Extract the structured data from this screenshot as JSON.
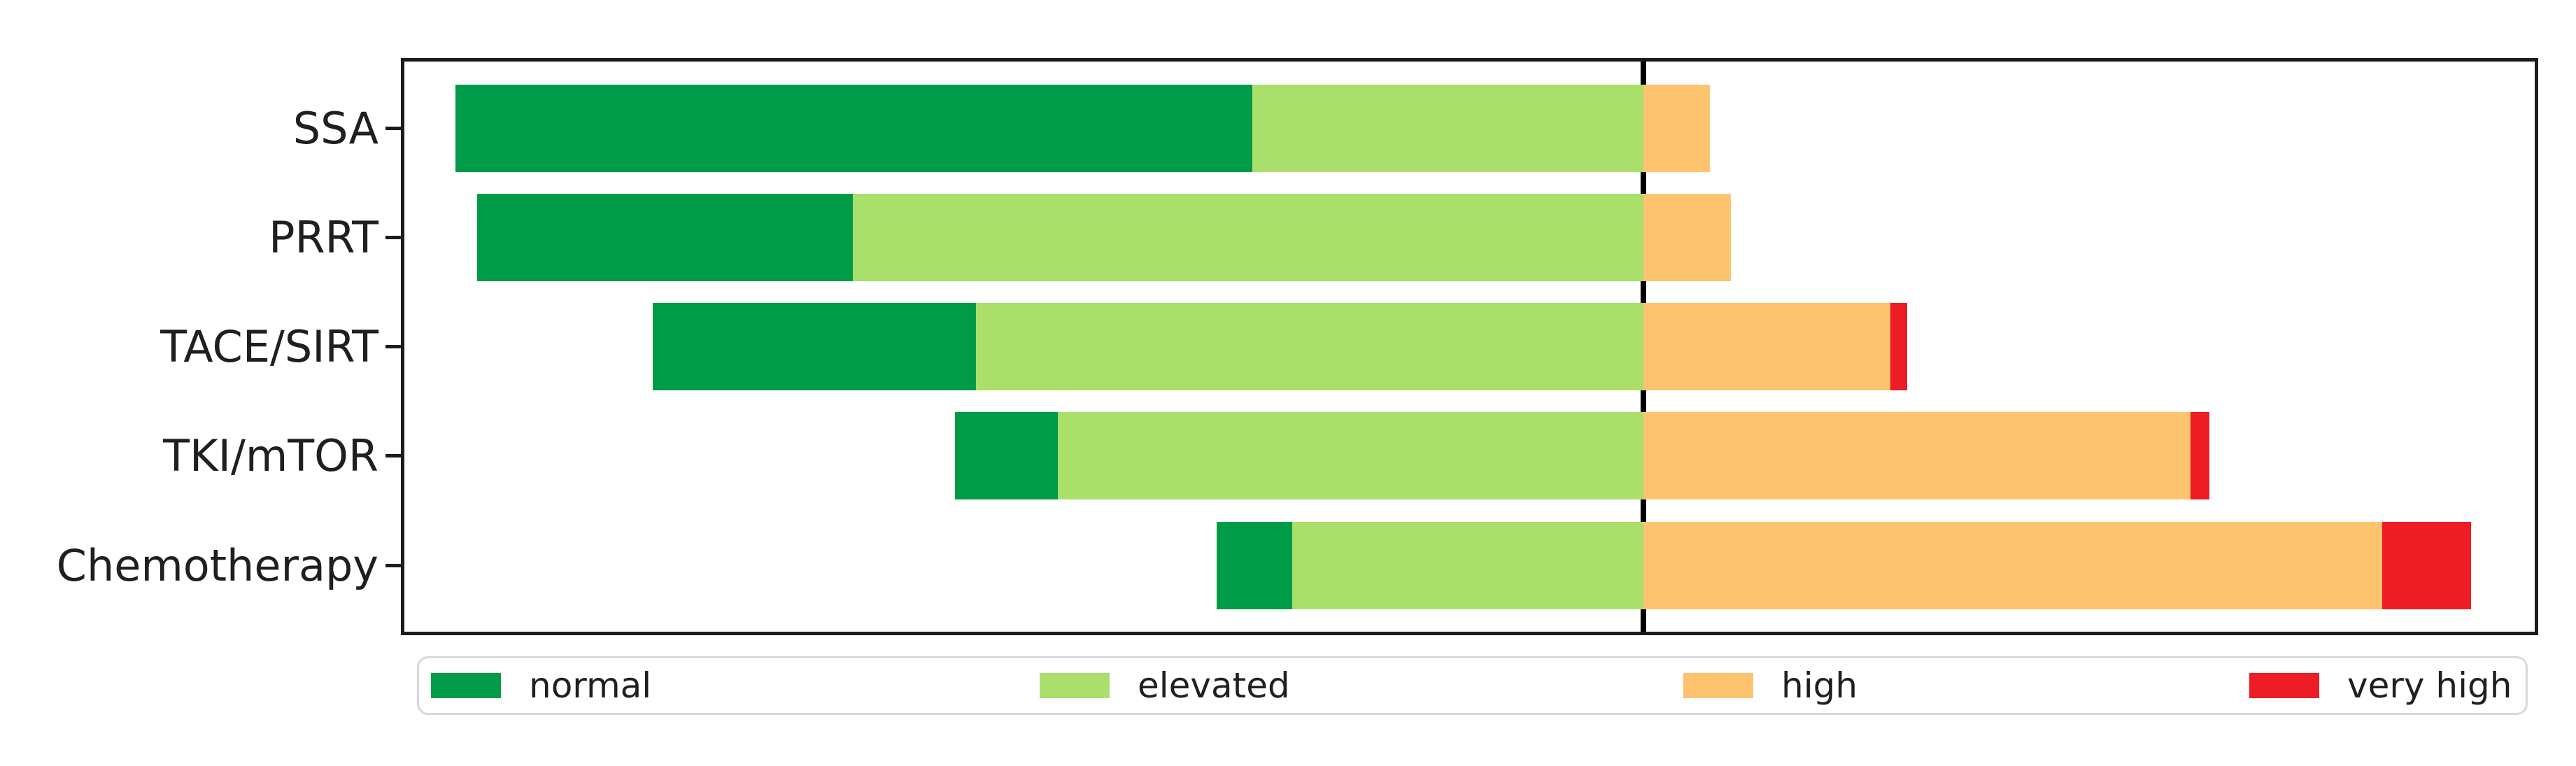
{
  "chart_data": {
    "type": "bar",
    "subtype": "diverging-stacked-horizontal",
    "title": "",
    "xlabel": "",
    "ylabel": "",
    "categories": [
      "SSA",
      "PRRT",
      "TACE/SIRT",
      "TKI/mTOR",
      "Chemotherapy"
    ],
    "series": [
      {
        "name": "normal",
        "color": "#009b48",
        "values": [
          63.5,
          30.0,
          25.8,
          8.2,
          6.0
        ]
      },
      {
        "name": "elevated",
        "color": "#aadf6c",
        "values": [
          31.2,
          63.0,
          53.2,
          46.7,
          28.0
        ]
      },
      {
        "name": "high",
        "color": "#fdc36e",
        "values": [
          5.3,
          7.0,
          19.7,
          43.6,
          58.9
        ]
      },
      {
        "name": "very high",
        "color": "#ee1c24",
        "values": [
          0.0,
          0.0,
          1.3,
          1.5,
          7.1
        ]
      }
    ],
    "values_unit": "percent of each bar (each bar totals 100)",
    "alignment_note": "each bar is offset so the boundary between 'elevated' and 'high' sits on the vertical black reference line",
    "reference_line": {
      "color": "#000000",
      "x_fraction_of_plot_width": 0.5813
    },
    "axis_ranges": {
      "x_tick_labels": [],
      "grid": false
    },
    "legend": {
      "position": "bottom",
      "entries": [
        {
          "label": "normal",
          "color": "#009b48"
        },
        {
          "label": "elevated",
          "color": "#aadf6c"
        },
        {
          "label": "high",
          "color": "#fdc36e"
        },
        {
          "label": "very high",
          "color": "#ee1c24"
        }
      ]
    }
  }
}
